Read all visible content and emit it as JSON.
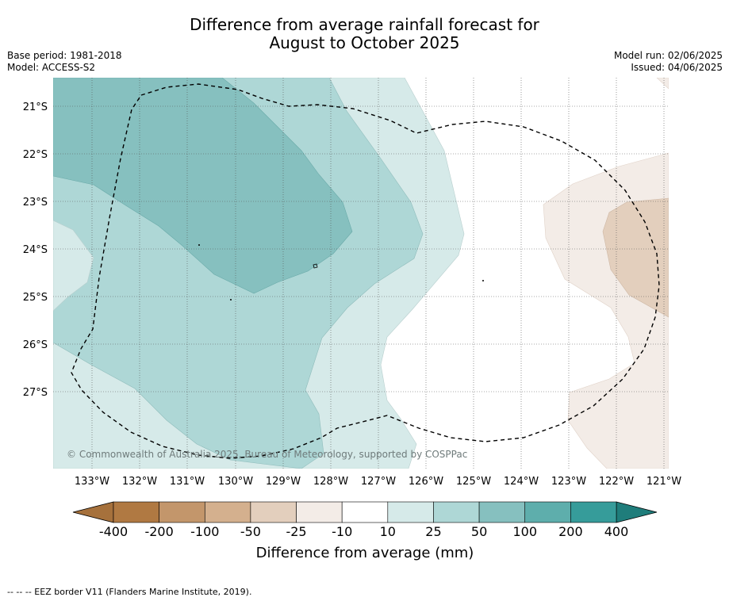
{
  "title": {
    "line1": "Difference from average rainfall forecast for",
    "line2": "August to October 2025"
  },
  "meta": {
    "base_period": "Base period: 1981-2018",
    "model": "Model: ACCESS-S2",
    "model_run": "Model run: 02/06/2025",
    "issued": "Issued: 04/06/2025"
  },
  "map": {
    "lon_labels": [
      "133°W",
      "132°W",
      "131°W",
      "130°W",
      "129°W",
      "128°W",
      "127°W",
      "126°W",
      "125°W",
      "124°W",
      "123°W",
      "122°W",
      "121°W"
    ],
    "lat_labels": [
      "21°S",
      "22°S",
      "23°S",
      "24°S",
      "25°S",
      "26°S",
      "27°S"
    ],
    "copyright": "© Commonwealth of Australia 2025, Bureau of Meteorology, supported by COSPPac"
  },
  "colorbar": {
    "ticks": [
      "-400",
      "-200",
      "-100",
      "-50",
      "-25",
      "-10",
      "10",
      "25",
      "50",
      "100",
      "200",
      "400"
    ],
    "label": "Difference from average (mm)",
    "colors": [
      "#a6713c",
      "#b07942",
      "#c3966b",
      "#d4b08e",
      "#e3cfbd",
      "#f3ece7",
      "#ffffff",
      "#d6eae9",
      "#aed7d6",
      "#86c0bf",
      "#5eaeac",
      "#369c9a",
      "#1f7d7b"
    ]
  },
  "legend_note": "--  --  -- EEZ border V11 (Flanders Marine Institute, 2019)."
}
